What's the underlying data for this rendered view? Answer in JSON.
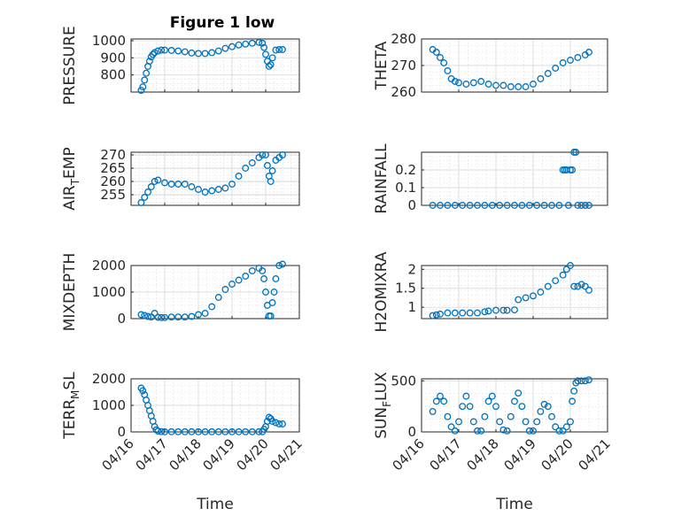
{
  "figure": {
    "title": "Figure 1 low"
  },
  "style": {
    "marker_color": "#0072BD",
    "axis_color": "#262626",
    "grid_color": "#dcdcdc"
  },
  "x_axis": {
    "label": "Time",
    "ticks": [
      0,
      1,
      2,
      3,
      4,
      5
    ],
    "tick_labels": [
      "04/16",
      "04/17",
      "04/18",
      "04/19",
      "04/20",
      "04/21"
    ],
    "range": [
      0,
      5
    ]
  },
  "chart_data": [
    {
      "type": "scatter",
      "ylabel": "PRESSURE",
      "title": "Figure 1 low",
      "ylim": [
        700,
        1010
      ],
      "yticks": [
        800,
        900,
        1000
      ],
      "grid": true,
      "x": [
        0.3,
        0.35,
        0.4,
        0.45,
        0.5,
        0.55,
        0.6,
        0.65,
        0.7,
        0.8,
        0.9,
        1.0,
        1.2,
        1.4,
        1.6,
        1.8,
        2.0,
        2.2,
        2.4,
        2.6,
        2.8,
        3.0,
        3.2,
        3.4,
        3.6,
        3.8,
        3.9,
        3.95,
        4.0,
        4.05,
        4.1,
        4.15,
        4.2,
        4.3,
        4.4,
        4.5
      ],
      "y": [
        710,
        730,
        770,
        810,
        850,
        880,
        905,
        920,
        930,
        940,
        945,
        945,
        943,
        940,
        935,
        928,
        925,
        925,
        930,
        940,
        955,
        965,
        975,
        980,
        985,
        990,
        985,
        960,
        920,
        880,
        850,
        860,
        900,
        945,
        948,
        948
      ]
    },
    {
      "type": "scatter",
      "ylabel": "THETA",
      "ylim": [
        260,
        280
      ],
      "yticks": [
        260,
        270,
        280
      ],
      "grid": true,
      "x": [
        0.3,
        0.4,
        0.5,
        0.6,
        0.7,
        0.8,
        0.9,
        1.0,
        1.2,
        1.4,
        1.6,
        1.8,
        2.0,
        2.2,
        2.4,
        2.6,
        2.8,
        3.0,
        3.2,
        3.4,
        3.6,
        3.8,
        4.0,
        4.2,
        4.4,
        4.5
      ],
      "y": [
        276,
        275,
        273,
        271,
        268,
        265,
        264,
        263.5,
        263,
        263.5,
        264,
        263,
        262.5,
        262.5,
        262,
        262,
        262,
        263,
        265,
        267,
        269,
        271,
        272,
        273,
        274,
        275
      ]
    },
    {
      "type": "scatter",
      "ylabel": "AIR_TEMP",
      "ylim": [
        251,
        271
      ],
      "yticks": [
        255,
        260,
        265,
        270
      ],
      "grid": true,
      "x": [
        0.3,
        0.4,
        0.5,
        0.6,
        0.7,
        0.8,
        1.0,
        1.2,
        1.4,
        1.6,
        1.8,
        2.0,
        2.2,
        2.4,
        2.6,
        2.8,
        3.0,
        3.2,
        3.4,
        3.6,
        3.8,
        3.9,
        4.0,
        4.05,
        4.1,
        4.15,
        4.2,
        4.3,
        4.4,
        4.5
      ],
      "y": [
        252,
        254,
        256,
        258,
        260,
        260.5,
        259.5,
        259,
        259,
        259,
        258,
        257,
        256,
        256.5,
        257,
        257.5,
        259,
        262,
        265,
        267,
        269,
        270,
        270,
        266,
        262,
        260,
        264,
        268,
        269,
        270
      ]
    },
    {
      "type": "scatter",
      "ylabel": "RAINFALL",
      "ylim": [
        0,
        0.3
      ],
      "yticks": [
        0,
        0.1,
        0.2
      ],
      "grid": true,
      "x": [
        0.3,
        0.5,
        0.7,
        0.9,
        1.1,
        1.3,
        1.5,
        1.7,
        1.9,
        2.1,
        2.3,
        2.5,
        2.7,
        2.9,
        3.1,
        3.3,
        3.5,
        3.7,
        3.8,
        3.85,
        3.9,
        3.95,
        4.0,
        4.05,
        4.1,
        4.15,
        4.2,
        4.3,
        4.4,
        4.5
      ],
      "y": [
        0,
        0,
        0,
        0,
        0,
        0,
        0,
        0,
        0,
        0,
        0,
        0,
        0,
        0,
        0,
        0,
        0,
        0,
        0.2,
        0.2,
        0.2,
        0,
        0.2,
        0.2,
        0.3,
        0.3,
        0,
        0,
        0,
        0
      ]
    },
    {
      "type": "scatter",
      "ylabel": "MIXDEPTH",
      "ylim": [
        0,
        2000
      ],
      "yticks": [
        0,
        1000,
        2000
      ],
      "grid": true,
      "x": [
        0.3,
        0.4,
        0.5,
        0.6,
        0.7,
        0.8,
        0.9,
        1.0,
        1.2,
        1.4,
        1.6,
        1.8,
        2.0,
        2.2,
        2.4,
        2.6,
        2.8,
        3.0,
        3.2,
        3.4,
        3.6,
        3.8,
        3.9,
        3.95,
        4.0,
        4.05,
        4.1,
        4.15,
        4.2,
        4.25,
        4.3,
        4.4,
        4.5
      ],
      "y": [
        150,
        120,
        80,
        60,
        200,
        50,
        40,
        40,
        60,
        60,
        60,
        80,
        150,
        200,
        450,
        800,
        1100,
        1300,
        1450,
        1600,
        1800,
        1900,
        1800,
        1500,
        1000,
        500,
        100,
        100,
        600,
        1000,
        1500,
        2000,
        2050
      ]
    },
    {
      "type": "scatter",
      "ylabel": "H2OMIXRA",
      "ylim": [
        0.7,
        2.1
      ],
      "yticks": [
        1,
        1.5,
        2
      ],
      "grid": true,
      "x": [
        0.3,
        0.4,
        0.5,
        0.7,
        0.9,
        1.1,
        1.3,
        1.5,
        1.7,
        1.8,
        2.0,
        2.2,
        2.3,
        2.5,
        2.6,
        2.8,
        3.0,
        3.2,
        3.4,
        3.6,
        3.8,
        3.9,
        4.0,
        4.1,
        4.2,
        4.3,
        4.4,
        4.5
      ],
      "y": [
        0.78,
        0.8,
        0.82,
        0.85,
        0.85,
        0.85,
        0.85,
        0.85,
        0.88,
        0.9,
        0.92,
        0.92,
        0.92,
        0.93,
        1.2,
        1.25,
        1.3,
        1.4,
        1.55,
        1.7,
        1.85,
        2.0,
        2.1,
        1.55,
        1.55,
        1.6,
        1.55,
        1.45
      ]
    },
    {
      "type": "scatter",
      "ylabel": "TERR_MSL",
      "ylim": [
        0,
        2000
      ],
      "yticks": [
        0,
        1000,
        2000
      ],
      "grid": true,
      "x": [
        0.3,
        0.35,
        0.4,
        0.45,
        0.5,
        0.55,
        0.6,
        0.65,
        0.7,
        0.75,
        0.8,
        0.9,
        1.0,
        1.2,
        1.4,
        1.6,
        1.8,
        2.0,
        2.2,
        2.4,
        2.6,
        2.8,
        3.0,
        3.2,
        3.4,
        3.6,
        3.8,
        3.9,
        3.95,
        4.0,
        4.05,
        4.1,
        4.15,
        4.2,
        4.3,
        4.4,
        4.5
      ],
      "y": [
        1650,
        1550,
        1400,
        1200,
        1000,
        800,
        600,
        400,
        200,
        80,
        30,
        10,
        5,
        5,
        5,
        5,
        5,
        5,
        5,
        5,
        5,
        5,
        5,
        5,
        5,
        5,
        5,
        5,
        100,
        200,
        400,
        550,
        500,
        400,
        350,
        300,
        300
      ]
    },
    {
      "type": "scatter",
      "ylabel": "SUN_FLUX",
      "ylim": [
        0,
        520
      ],
      "yticks": [
        0,
        500
      ],
      "grid": true,
      "x": [
        0.3,
        0.4,
        0.5,
        0.6,
        0.7,
        0.8,
        0.9,
        1.0,
        1.1,
        1.2,
        1.3,
        1.4,
        1.5,
        1.6,
        1.7,
        1.8,
        1.9,
        2.0,
        2.1,
        2.2,
        2.3,
        2.4,
        2.5,
        2.6,
        2.7,
        2.8,
        2.9,
        3.0,
        3.1,
        3.2,
        3.3,
        3.4,
        3.5,
        3.6,
        3.7,
        3.8,
        3.9,
        4.0,
        4.05,
        4.1,
        4.15,
        4.2,
        4.3,
        4.4,
        4.5
      ],
      "y": [
        200,
        300,
        350,
        300,
        150,
        50,
        10,
        100,
        250,
        350,
        250,
        100,
        10,
        10,
        150,
        300,
        350,
        250,
        100,
        20,
        10,
        150,
        300,
        380,
        250,
        100,
        10,
        10,
        100,
        200,
        270,
        250,
        150,
        50,
        10,
        10,
        50,
        100,
        300,
        400,
        480,
        500,
        500,
        500,
        510
      ]
    }
  ]
}
